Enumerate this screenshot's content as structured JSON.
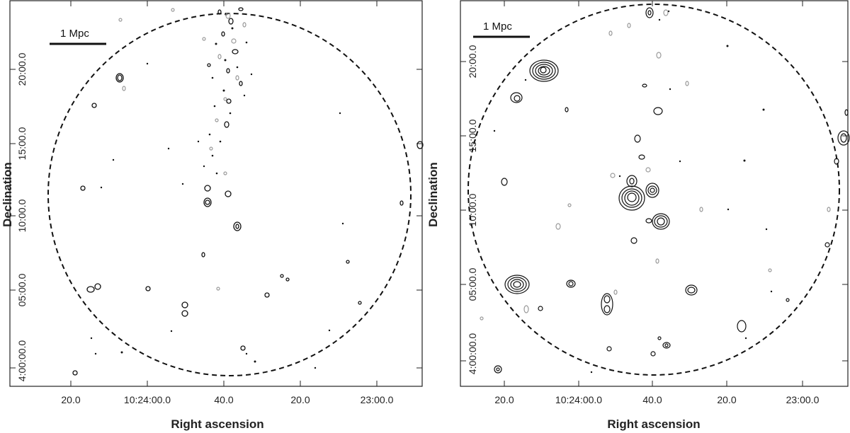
{
  "panels": [
    {
      "id": "left",
      "scale_bar_label": "1 Mpc",
      "x_ticks": [
        "20.0",
        "10:24:00.0",
        "40.0",
        "20.0",
        "23:00.0"
      ],
      "y_ticks": [
        "20:00.0",
        "15:00.0",
        "10:00.0",
        "05:00.0",
        "4:00:00.0"
      ],
      "xlabel": "Right ascension",
      "ylabel": "Declination"
    },
    {
      "id": "right",
      "scale_bar_label": "1 Mpc",
      "x_ticks": [
        "20.0",
        "10:24:00.0",
        "40.0",
        "20.0",
        "23:00.0"
      ],
      "y_ticks": [
        "20:00.0",
        "15:00.0",
        "10:00.0",
        "05:00.0",
        "4:00:00.0"
      ],
      "xlabel": "Right ascension",
      "ylabel": "Declination"
    }
  ],
  "colors": {
    "contour_positive": "#111111",
    "contour_negative": "#9a9a9a",
    "frame": "#222222"
  }
}
